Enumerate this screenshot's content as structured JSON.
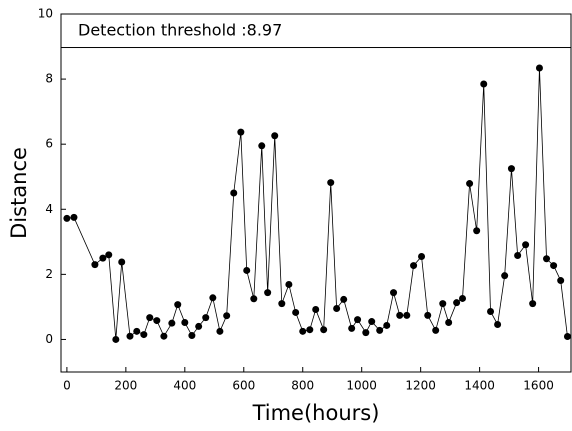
{
  "chart_data": {
    "type": "line",
    "x_label": "Time(hours)",
    "y_label": "Distance",
    "annotation": "Detection threshold :8.97",
    "threshold": 8.97,
    "x": [
      0,
      24,
      95,
      122,
      142,
      166,
      186,
      214,
      237,
      261,
      281,
      305,
      329,
      356,
      376,
      400,
      424,
      447,
      471,
      495,
      519,
      542,
      566,
      590,
      610,
      634,
      661,
      681,
      705,
      729,
      753,
      776,
      800,
      824,
      844,
      871,
      895,
      915,
      939,
      966,
      986,
      1014,
      1034,
      1061,
      1085,
      1108,
      1129,
      1153,
      1176,
      1203,
      1224,
      1251,
      1275,
      1295,
      1322,
      1342,
      1366,
      1390,
      1414,
      1437,
      1461,
      1485,
      1508,
      1529,
      1556,
      1580,
      1603,
      1627,
      1651,
      1675,
      1698
    ],
    "series": [
      {
        "color": "#000000",
        "values": [
          3.72,
          3.75,
          2.3,
          2.5,
          2.6,
          0,
          2.38,
          0.1,
          0.25,
          0.15,
          0.67,
          0.58,
          0.1,
          0.5,
          1.07,
          0.52,
          0.12,
          0.4,
          0.67,
          1.28,
          0.25,
          0.73,
          4.5,
          6.37,
          2.12,
          1.25,
          5.95,
          1.44,
          6.26,
          1.1,
          1.69,
          0.83,
          0.25,
          0.3,
          0.92,
          0.3,
          4.82,
          0.95,
          1.23,
          0.34,
          0.61,
          0.21,
          0.55,
          0.28,
          0.43,
          1.44,
          0.74,
          0.74,
          2.27,
          2.55,
          0.74,
          0.28,
          1.1,
          0.52,
          1.13,
          1.26,
          4.79,
          3.34,
          7.85,
          0.86,
          0.46,
          1.96,
          5.25,
          2.58,
          2.91,
          1.1,
          8.34,
          2.48,
          2.27,
          1.81,
          0.09
        ]
      }
    ],
    "xlim": [
      -20,
      1710
    ],
    "ylim": [
      -1,
      10
    ],
    "xticks": [
      0,
      200,
      400,
      600,
      800,
      1000,
      1200,
      1400,
      1600
    ],
    "yticks": [
      0,
      2,
      4,
      6,
      8,
      10
    ]
  }
}
